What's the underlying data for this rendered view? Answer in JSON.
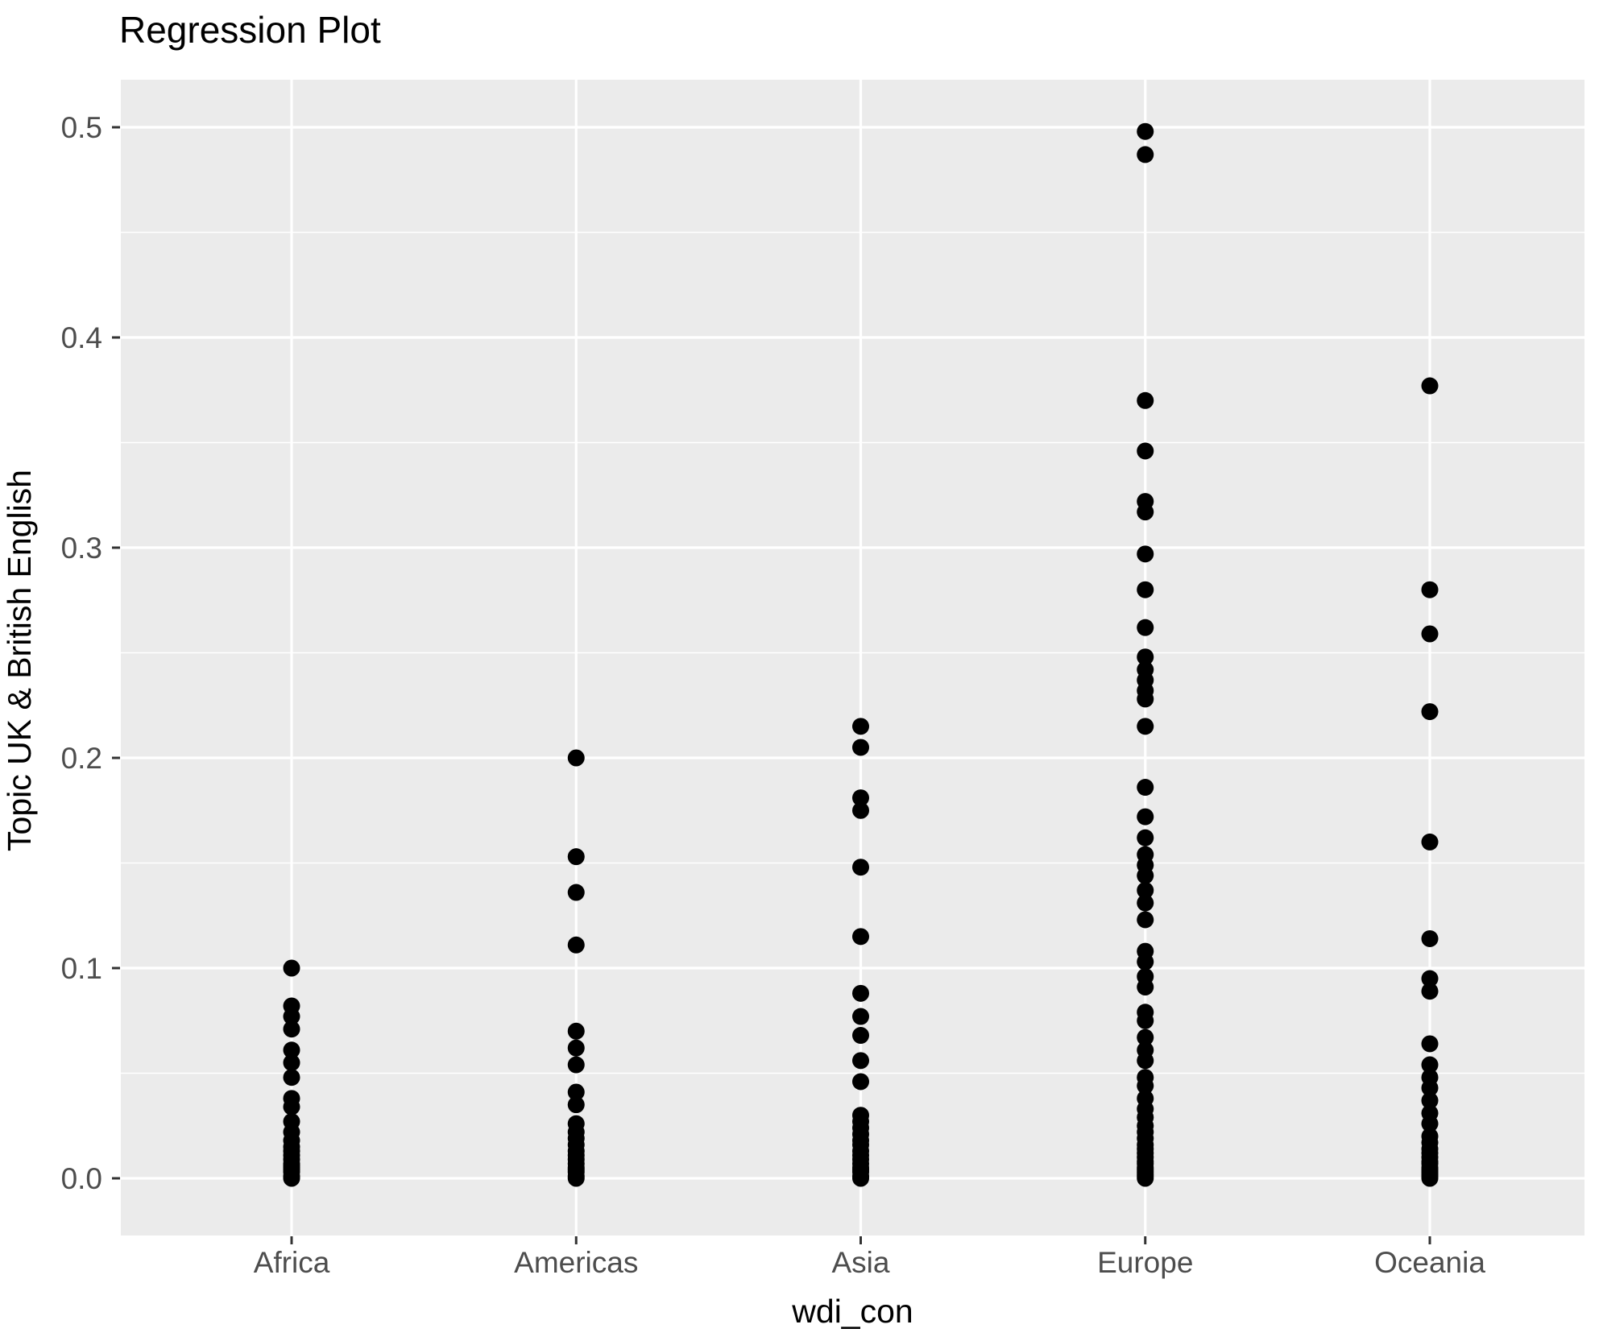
{
  "title": "Regression Plot",
  "chart_data": {
    "type": "scatter",
    "subtype": "strip-plot",
    "title": "Regression Plot",
    "xlabel": "wdi_con",
    "ylabel": "Topic UK & British English",
    "categories": [
      "Africa",
      "Americas",
      "Asia",
      "Europe",
      "Oceania"
    ],
    "ylim": [
      0,
      0.5
    ],
    "yticks": [
      0.0,
      0.1,
      0.2,
      0.3,
      0.4,
      0.5
    ],
    "ytick_labels": [
      "0.0",
      "0.1",
      "0.2",
      "0.3",
      "0.4",
      "0.5"
    ],
    "yminor_ticks": [
      0.05,
      0.15,
      0.25,
      0.35,
      0.45
    ],
    "grid": "white major+minor horizontal and major vertical gridlines on grey panel",
    "legend": "none",
    "point_color": "#000000",
    "panel_color": "#EBEBEB",
    "grid_color": "#FFFFFF",
    "tick_text_color": "#4D4D4D",
    "axis_title_color": "#000000",
    "series": [
      {
        "name": "Africa",
        "values": [
          0.1,
          0.082,
          0.077,
          0.071,
          0.061,
          0.055,
          0.048,
          0.038,
          0.034,
          0.027,
          0.022,
          0.018,
          0.015,
          0.013,
          0.011,
          0.009,
          0.007,
          0.006,
          0.005,
          0.004,
          0.003,
          0.001,
          0.0
        ]
      },
      {
        "name": "Americas",
        "values": [
          0.2,
          0.153,
          0.136,
          0.111,
          0.07,
          0.062,
          0.054,
          0.041,
          0.035,
          0.026,
          0.022,
          0.019,
          0.016,
          0.013,
          0.011,
          0.009,
          0.007,
          0.005,
          0.004,
          0.003,
          0.001,
          0.0
        ]
      },
      {
        "name": "Asia",
        "values": [
          0.215,
          0.205,
          0.181,
          0.175,
          0.148,
          0.115,
          0.088,
          0.077,
          0.068,
          0.056,
          0.046,
          0.03,
          0.027,
          0.024,
          0.021,
          0.018,
          0.016,
          0.013,
          0.011,
          0.009,
          0.007,
          0.005,
          0.004,
          0.003,
          0.001,
          0.0
        ]
      },
      {
        "name": "Europe",
        "values": [
          0.498,
          0.487,
          0.37,
          0.346,
          0.322,
          0.317,
          0.297,
          0.28,
          0.262,
          0.248,
          0.242,
          0.237,
          0.232,
          0.228,
          0.215,
          0.186,
          0.172,
          0.162,
          0.154,
          0.149,
          0.144,
          0.137,
          0.131,
          0.123,
          0.108,
          0.103,
          0.096,
          0.091,
          0.079,
          0.075,
          0.067,
          0.061,
          0.056,
          0.048,
          0.044,
          0.038,
          0.033,
          0.029,
          0.025,
          0.022,
          0.019,
          0.016,
          0.014,
          0.012,
          0.01,
          0.008,
          0.007,
          0.005,
          0.004,
          0.003,
          0.002,
          0.001,
          0.0
        ]
      },
      {
        "name": "Oceania",
        "values": [
          0.377,
          0.28,
          0.259,
          0.222,
          0.16,
          0.114,
          0.095,
          0.089,
          0.064,
          0.054,
          0.048,
          0.043,
          0.037,
          0.031,
          0.026,
          0.02,
          0.017,
          0.014,
          0.012,
          0.01,
          0.008,
          0.007,
          0.005,
          0.004,
          0.003,
          0.002,
          0.001,
          0.0
        ]
      }
    ]
  }
}
